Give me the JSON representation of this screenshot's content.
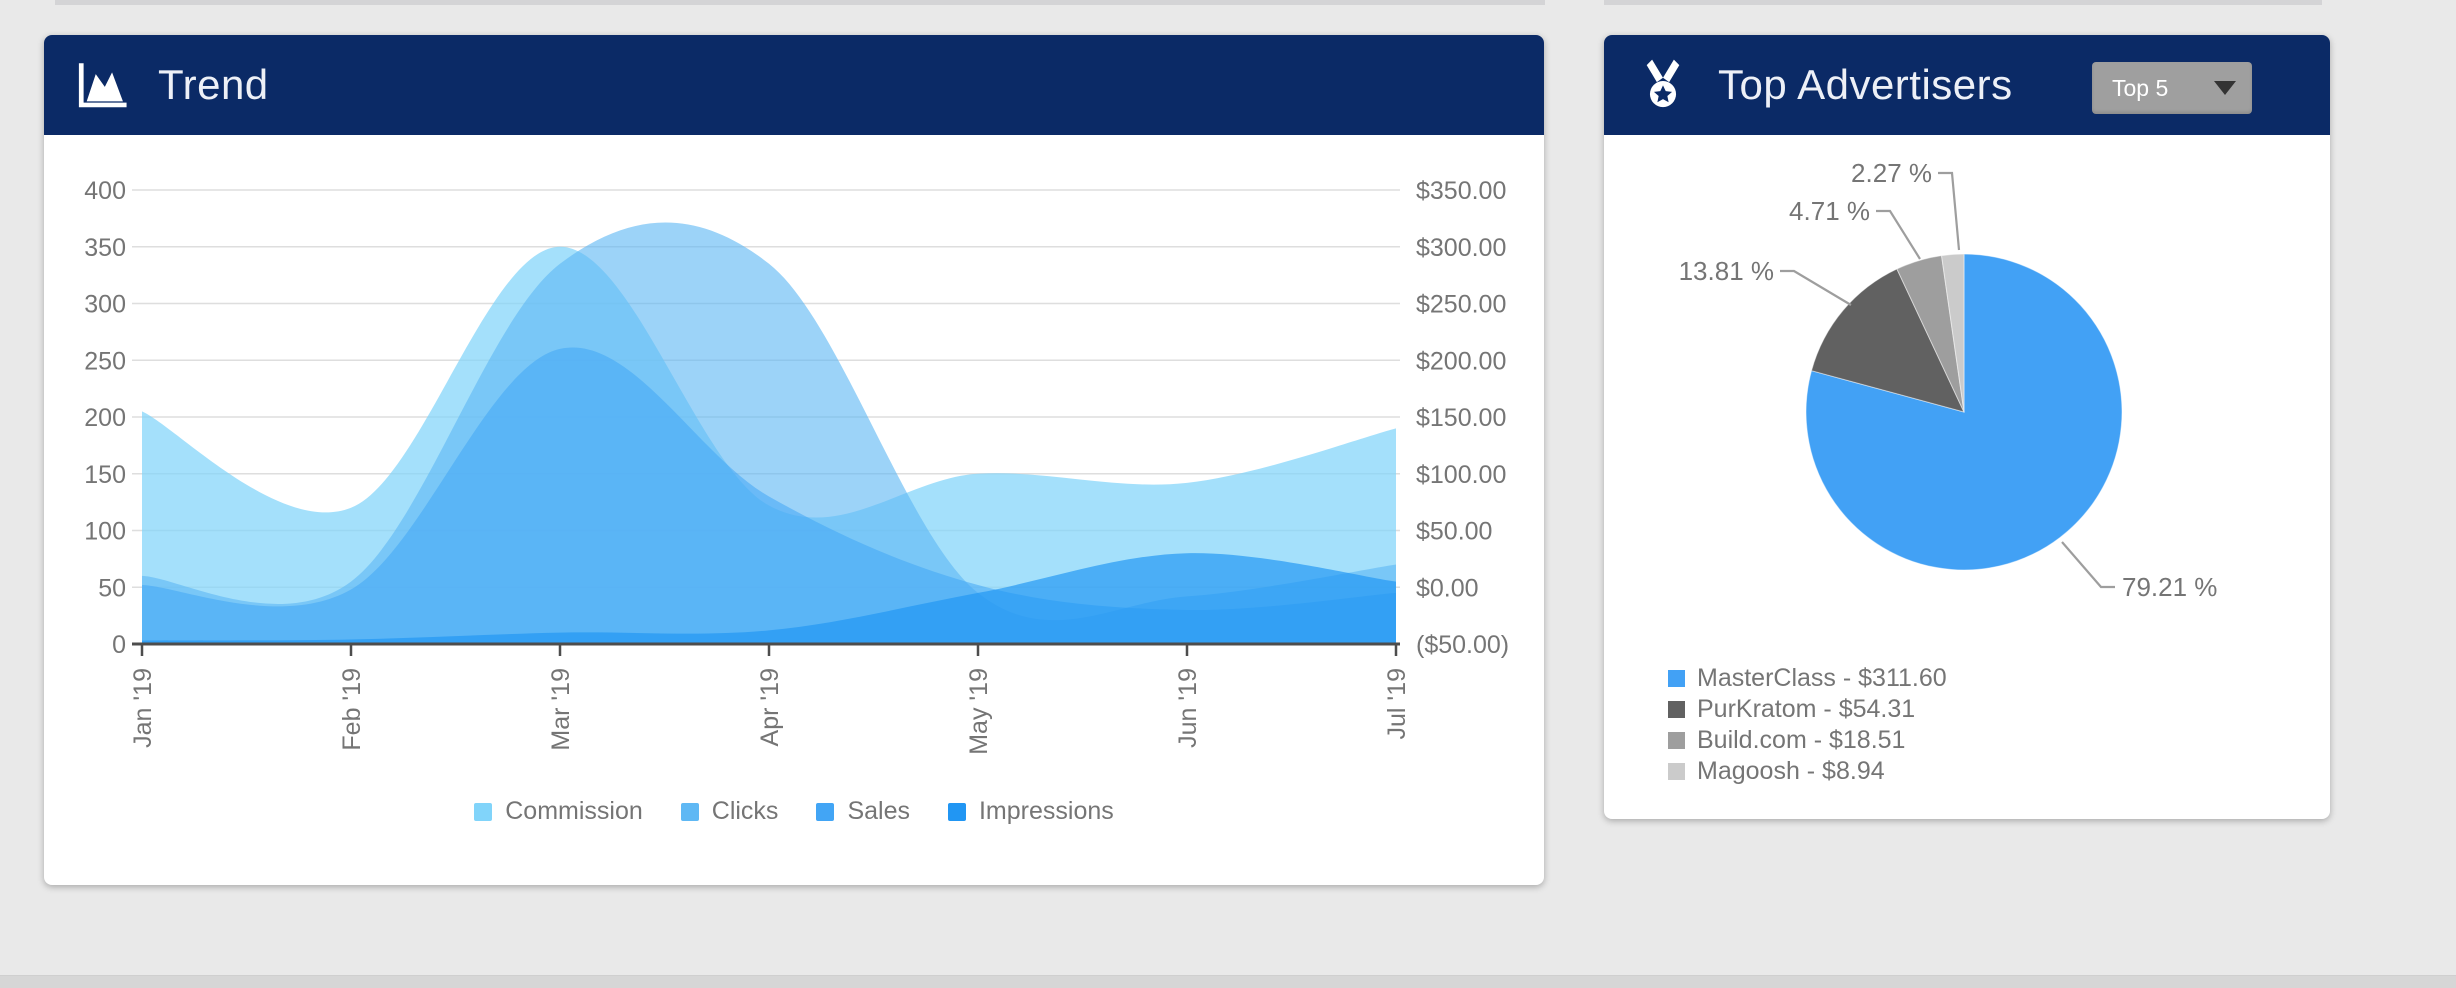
{
  "page": {
    "background": "#e9e9e9",
    "header_color": "#0b2a66",
    "accent_blue": "#2196f3"
  },
  "trend": {
    "title": "Trend",
    "icon": "area-chart-icon"
  },
  "pie": {
    "title": "Top Advertisers",
    "icon": "medal-icon",
    "dropdown_value": "Top 5",
    "legend": [
      {
        "display": "MasterClass - $311.60",
        "color": "#42a1f5"
      },
      {
        "display": "PurKratom - $54.31",
        "color": "#616161"
      },
      {
        "display": "Build.com - $18.51",
        "color": "#9e9e9e"
      },
      {
        "display": "Magoosh - $8.94",
        "color": "#cbcbcb"
      }
    ]
  },
  "chart_data": [
    {
      "type": "area",
      "title": "Trend",
      "x": [
        "Jan '19",
        "Feb '19",
        "Mar '19",
        "Apr '19",
        "May '19",
        "Jun '19",
        "Jul '19"
      ],
      "left_axis": {
        "range": [
          0,
          400
        ],
        "tick_labels": [
          "400",
          "350",
          "300",
          "250",
          "200",
          "150",
          "100",
          "50",
          "0"
        ]
      },
      "right_axis": {
        "range": [
          -50,
          350
        ],
        "tick_labels": [
          "$350.00",
          "$300.00",
          "$250.00",
          "$200.00",
          "$150.00",
          "$100.00",
          "$50.00",
          "$0.00",
          "($50.00)"
        ]
      },
      "grid": true,
      "legend_position": "bottom",
      "series": [
        {
          "name": "Commission",
          "axis": "right",
          "color": "#81d4fa",
          "fill": "rgba(129,212,250,0.72)",
          "values_usd": [
            155,
            70,
            300,
            72,
            100,
            92,
            140
          ],
          "values_left_equivalent": [
            205,
            120,
            350,
            122,
            150,
            142,
            190
          ]
        },
        {
          "name": "Clicks",
          "axis": "left",
          "color": "#5fb8f4",
          "fill": "rgba(95,184,244,0.62)",
          "values": [
            60,
            55,
            335,
            335,
            45,
            42,
            70
          ]
        },
        {
          "name": "Sales",
          "axis": "left",
          "color": "#42a5f5",
          "fill": "rgba(66,165,245,0.55)",
          "values": [
            52,
            48,
            260,
            130,
            52,
            30,
            45
          ]
        },
        {
          "name": "Impressions",
          "axis": "left",
          "color": "#2196f3",
          "fill": "rgba(33,150,243,0.68)",
          "values": [
            3,
            4,
            10,
            12,
            45,
            80,
            55
          ]
        }
      ]
    },
    {
      "type": "pie",
      "title": "Top Advertisers",
      "start_angle_deg": 0,
      "direction": "clockwise",
      "slices": [
        {
          "label": "MasterClass",
          "value_usd": 311.6,
          "pct": 79.21,
          "pct_label": "79.21 %",
          "color": "#42a1f5"
        },
        {
          "label": "PurKratom",
          "value_usd": 54.31,
          "pct": 13.81,
          "pct_label": "13.81 %",
          "color": "#616161"
        },
        {
          "label": "Build.com",
          "value_usd": 18.51,
          "pct": 4.71,
          "pct_label": "4.71 %",
          "color": "#9e9e9e"
        },
        {
          "label": "Magoosh",
          "value_usd": 8.94,
          "pct": 2.27,
          "pct_label": "2.27 %",
          "color": "#cbcbcb"
        }
      ]
    }
  ]
}
